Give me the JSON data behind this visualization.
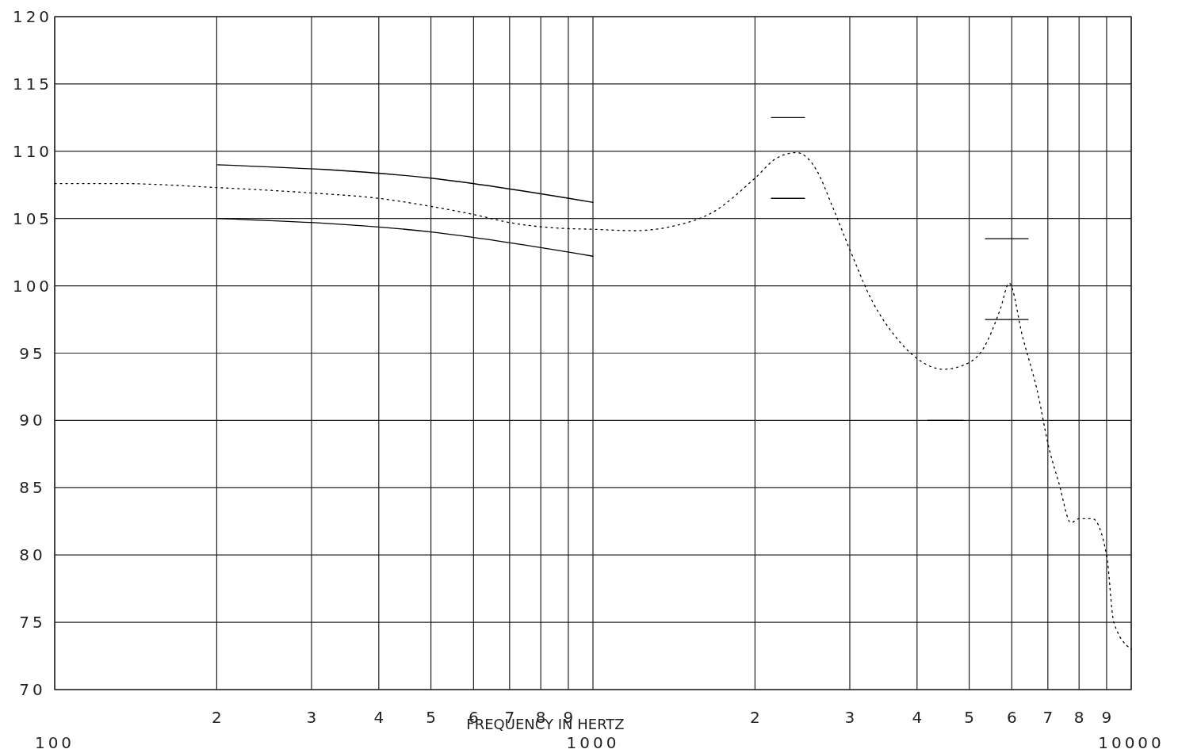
{
  "chart_data": {
    "type": "line",
    "xlabel": "FREQUENCY IN HERTZ",
    "log": "x",
    "grid": true,
    "marker": "none",
    "annotations": [
      "2",
      "3",
      "4",
      "5",
      "6",
      "7",
      "8",
      "9",
      "2",
      "3",
      "4",
      "5",
      "6",
      "7",
      "8",
      "9"
    ],
    "xlim": [
      100,
      10000
    ],
    "ylim": [
      70,
      120
    ],
    "xticks": [
      100,
      {
        "value": 200,
        "label": null
      },
      {
        "value": 300,
        "label": null
      },
      {
        "value": 400,
        "label": null
      },
      {
        "value": 500,
        "label": null
      },
      {
        "value": 600,
        "label": null
      },
      {
        "value": 700,
        "label": null
      },
      {
        "value": 800,
        "label": null
      },
      {
        "value": 900,
        "label": null
      },
      1000,
      {
        "value": 2000,
        "label": null
      },
      {
        "value": 3000,
        "label": null
      },
      {
        "value": 4000,
        "label": null
      },
      {
        "value": 5000,
        "label": null
      },
      {
        "value": 6000,
        "label": null
      },
      {
        "value": 7000,
        "label": null
      },
      {
        "value": 8000,
        "label": null
      },
      {
        "value": 9000,
        "label": null
      },
      10000
    ],
    "yticks": [
      70,
      75,
      80,
      85,
      90,
      95,
      100,
      105,
      110,
      115,
      120
    ],
    "series": [
      {
        "color": "#000000",
        "line_style": "dotted",
        "x": [
          100,
          132,
          200,
          300,
          400,
          500,
          600,
          700,
          850,
          1000,
          1193,
          1414,
          1675,
          2000,
          2196,
          2390,
          2602,
          2785,
          3000,
          3299,
          3652,
          4000,
          4477,
          5000,
          5304,
          5715,
          5932,
          6284,
          6725,
          7000,
          7344,
          7727,
          8000,
          8470,
          9000,
          9282,
          10000
        ],
        "values": [
          107.6,
          107.6,
          107.3,
          106.9,
          106.5,
          105.9,
          105.3,
          104.7,
          104.3,
          104.2,
          104.1,
          104.45,
          105.5,
          108.0,
          109.5,
          109.9,
          108.6,
          105.9,
          102.7,
          98.9,
          96.2,
          94.6,
          93.8,
          94.3,
          95.3,
          98.3,
          100.2,
          96.2,
          91.8,
          88.3,
          85.3,
          82.4,
          82.7,
          82.7,
          80,
          75,
          73
        ]
      },
      {
        "color": "#000000",
        "line_style": "solid",
        "x": [
          200,
          500,
          1000
        ],
        "values": [
          109,
          108,
          106.2
        ]
      },
      {
        "color": "#000000",
        "line_style": "solid",
        "x": [
          200,
          500,
          1000
        ],
        "values": [
          105,
          104,
          102.2
        ]
      },
      {
        "color": "#000000",
        "line_style": "solid",
        "x": [
          2145,
          2473
        ],
        "values": [
          112.5,
          112.5
        ]
      },
      {
        "color": "#000000",
        "line_style": "solid",
        "x": [
          2145,
          2473
        ],
        "values": [
          106.5,
          106.5
        ]
      },
      {
        "color": "#000000",
        "line_style": "solid",
        "x": [
          5358,
          6435
        ],
        "values": [
          103.5,
          103.5
        ]
      },
      {
        "color": "#000000",
        "line_style": "solid",
        "x": [
          5358,
          6435
        ],
        "values": [
          97.5,
          97.5
        ]
      },
      {
        "color": "#000000",
        "line_style": "solid",
        "x": [
          4183,
          4874
        ],
        "values": [
          90,
          90
        ]
      }
    ]
  }
}
